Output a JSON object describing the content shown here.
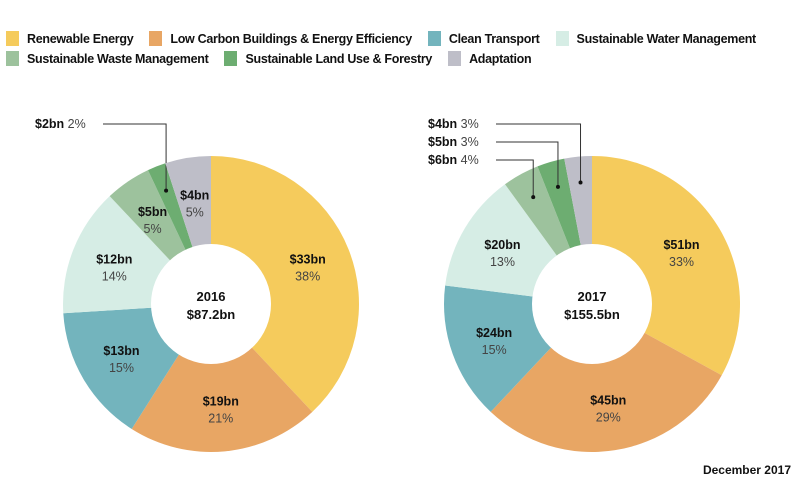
{
  "legend": [
    {
      "label": "Renewable Energy",
      "color": "#F5CB5C"
    },
    {
      "label": "Low Carbon Buildings & Energy Efficiency",
      "color": "#E8A664"
    },
    {
      "label": "Clean Transport",
      "color": "#73B4BD"
    },
    {
      "label": "Sustainable Water Management",
      "color": "#D6EDE5"
    },
    {
      "label": "Sustainable Waste Management",
      "color": "#9DC29D"
    },
    {
      "label": "Sustainable Land Use & Forestry",
      "color": "#6DAD71"
    },
    {
      "label": "Adaptation",
      "color": "#BEBEC8"
    }
  ],
  "chart_data": [
    {
      "type": "pie",
      "donut": true,
      "title": "2016",
      "total": "$87.2bn",
      "categories": [
        "Renewable Energy",
        "Low Carbon Buildings & Energy Efficiency",
        "Clean Transport",
        "Sustainable Water Management",
        "Sustainable Waste Management",
        "Sustainable Land Use & Forestry",
        "Adaptation"
      ],
      "values": [
        33,
        19,
        13,
        12,
        5,
        2,
        4
      ],
      "value_labels": [
        "$33bn",
        "$19bn",
        "$13bn",
        "$12bn",
        "$5bn",
        "$2bn",
        "$4bn"
      ],
      "percents": [
        38,
        21,
        15,
        14,
        5,
        2,
        5
      ],
      "percent_labels": [
        "38%",
        "21%",
        "15%",
        "14%",
        "5%",
        "2%",
        "5%"
      ],
      "callouts": [
        5
      ]
    },
    {
      "type": "pie",
      "donut": true,
      "title": "2017",
      "total": "$155.5bn",
      "categories": [
        "Renewable Energy",
        "Low Carbon Buildings & Energy Efficiency",
        "Clean Transport",
        "Sustainable Water Management",
        "Sustainable Waste Management",
        "Sustainable Land Use & Forestry",
        "Adaptation"
      ],
      "values": [
        51,
        45,
        24,
        20,
        6,
        5,
        4
      ],
      "value_labels": [
        "$51bn",
        "$45bn",
        "$24bn",
        "$20bn",
        "$6bn",
        "$5bn",
        "$4bn"
      ],
      "percents": [
        33,
        29,
        15,
        13,
        4,
        3,
        3
      ],
      "percent_labels": [
        "33%",
        "29%",
        "15%",
        "13%",
        "4%",
        "3%",
        "3%"
      ],
      "callouts": [
        4,
        5,
        6
      ]
    }
  ],
  "footer": "December 2017"
}
